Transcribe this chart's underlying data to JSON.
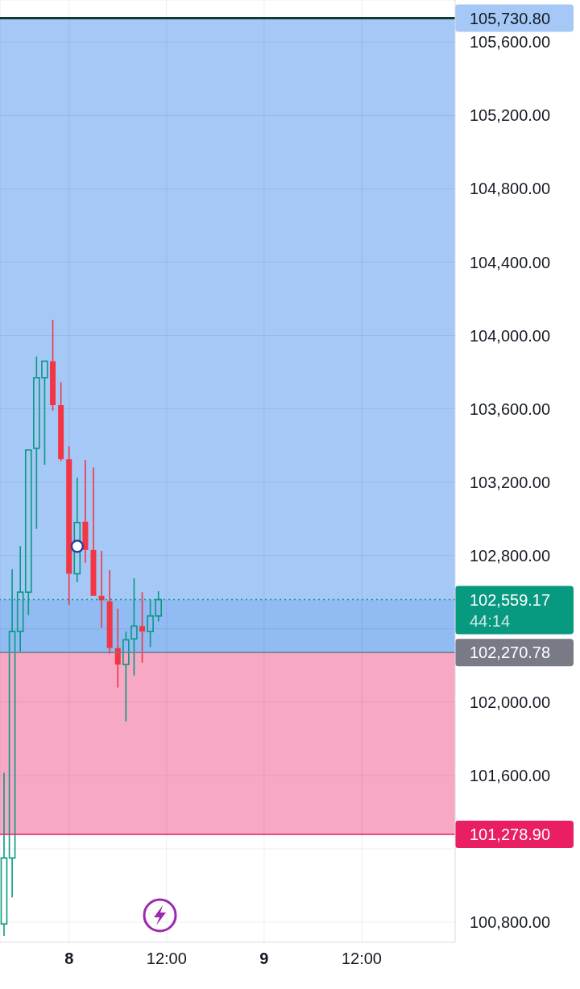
{
  "chart_data": {
    "type": "candlestick",
    "categories": [
      null,
      null,
      null,
      null,
      null,
      null,
      null,
      null,
      "8",
      null,
      null,
      null,
      null,
      null,
      null,
      null,
      null,
      null,
      null,
      null,
      "12:00",
      null,
      null,
      null,
      null,
      null,
      null,
      null,
      null,
      null,
      null,
      null,
      "9",
      null,
      null,
      null,
      null,
      null,
      null,
      null,
      null,
      null,
      null,
      null,
      "12:00",
      null,
      null,
      null,
      null,
      null,
      null,
      null,
      null,
      null,
      null,
      null
    ],
    "series": [
      {
        "ohlc": [
          [
            100790,
            101615,
            100725,
            101150
          ],
          [
            101150,
            102725,
            100935,
            102385
          ],
          [
            102385,
            102850,
            102275,
            102600
          ],
          [
            102600,
            103375,
            102475,
            103375
          ],
          [
            103385,
            103885,
            102945,
            103770
          ],
          [
            103770,
            103860,
            103295,
            103860
          ],
          [
            103860,
            104085,
            103590,
            103620
          ],
          [
            103620,
            103745,
            103315,
            103325
          ],
          [
            103325,
            103395,
            102530,
            102700
          ],
          [
            102700,
            103225,
            102655,
            102980
          ],
          [
            102985,
            103320,
            102760,
            102830
          ],
          [
            102830,
            103280,
            102580,
            102580
          ],
          [
            102580,
            102825,
            102405,
            102555
          ],
          [
            102550,
            102720,
            102265,
            102295
          ],
          [
            102295,
            102510,
            102080,
            102205
          ],
          [
            102205,
            102385,
            101895,
            102340
          ],
          [
            102345,
            102675,
            102145,
            102415
          ],
          [
            102415,
            102600,
            102215,
            102385
          ],
          [
            102385,
            102560,
            102300,
            102470
          ],
          [
            102470,
            102605,
            102440,
            102559.17
          ],
          null,
          null,
          null,
          null,
          null,
          null,
          null,
          null,
          null,
          null,
          null,
          null,
          null,
          null,
          null,
          null,
          null,
          null,
          null,
          null,
          null,
          null,
          null,
          null,
          null,
          null,
          null,
          null,
          null,
          null,
          null,
          null,
          null,
          null,
          null,
          null
        ],
        "colors": [
          "#089981",
          "#089981",
          "#089981",
          "#089981",
          "#089981",
          "#089981",
          "#f23645",
          "#f23645",
          "#f23645",
          "#089981",
          "#f23645",
          "#f23645",
          "#f23645",
          "#f23645",
          "#f23645",
          "#089981",
          "#089981",
          "#f23645",
          "#089981",
          "#089981",
          null,
          null,
          null,
          null,
          null,
          null,
          null,
          null,
          null,
          null,
          null,
          null,
          null,
          null,
          null,
          null,
          null,
          null,
          null,
          null,
          null,
          null,
          null,
          null,
          null,
          null,
          null,
          null,
          null,
          null,
          null,
          null,
          null,
          null,
          null,
          null
        ]
      },
      {
        "type": "scatter",
        "values": [
          null,
          null,
          null,
          null,
          null,
          null,
          null,
          null,
          null,
          102850,
          null,
          null,
          null,
          null,
          null,
          null,
          null,
          null,
          null,
          null,
          null,
          null,
          null,
          null,
          null,
          null,
          null,
          null,
          null,
          null,
          null,
          null,
          null,
          null,
          null,
          null,
          null,
          null,
          null,
          null,
          null,
          null,
          null,
          null,
          null,
          null,
          null,
          null,
          null,
          null,
          null,
          null,
          null,
          null,
          null,
          null
        ],
        "color": "#2e3f9e",
        "marker": "circle"
      }
    ],
    "ylim": [
      100690,
      105830
    ],
    "yticks": [
      {
        "value": 100800,
        "label": "100,800.00"
      },
      {
        "value": 101200,
        "label": null
      },
      {
        "value": 101600,
        "label": "101,600.00"
      },
      {
        "value": 102000,
        "label": "102,000.00"
      },
      {
        "value": 102400,
        "label": null
      },
      {
        "value": 102800,
        "label": "102,800.00"
      },
      {
        "value": 103200,
        "label": "103,200.00"
      },
      {
        "value": 103600,
        "label": "103,600.00"
      },
      {
        "value": 104000,
        "label": "104,000.00"
      },
      {
        "value": 104400,
        "label": "104,400.00"
      },
      {
        "value": 104800,
        "label": "104,800.00"
      },
      {
        "value": 105200,
        "label": "105,200.00"
      },
      {
        "value": 105600,
        "label": "105,600.00"
      }
    ],
    "grid": true,
    "bands": [
      {
        "axis": "y",
        "from": 102270.78,
        "to": 105730.8,
        "color": "#a5c8f6",
        "label": "105,730.80"
      },
      {
        "axis": "y",
        "from": 102270.78,
        "to": 102559.17,
        "color": "#90bbf3"
      },
      {
        "axis": "y",
        "from": 101278.9,
        "to": 102270.78,
        "color": "#f6a8c4"
      }
    ],
    "ref_lines": [
      {
        "axis": "y",
        "value": 105730.8,
        "color": "#0d3b33"
      },
      {
        "axis": "y",
        "value": 102559.17,
        "label": "102,559.17",
        "color": "#089981",
        "line_style": "dotted"
      },
      {
        "axis": "y",
        "value": 102270.78,
        "label": "102,270.78",
        "color": "#787b86"
      },
      {
        "axis": "y",
        "value": 101278.9,
        "label": "101,278.90",
        "color": "#e91e63"
      }
    ],
    "annotations": [
      "44:14"
    ]
  }
}
